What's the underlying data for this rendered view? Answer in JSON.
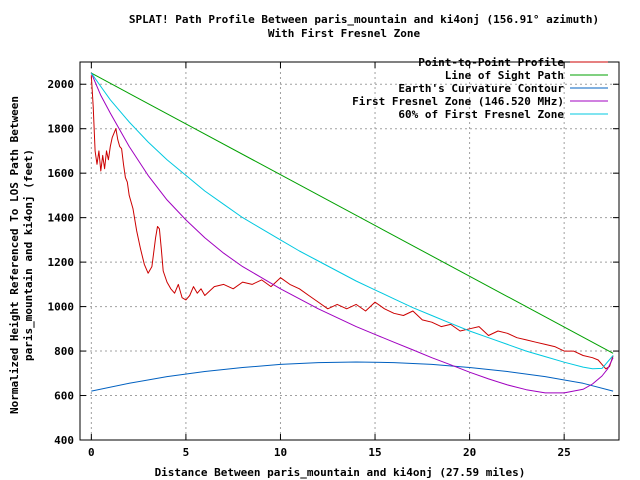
{
  "chart_data": {
    "type": "line",
    "title": "SPLAT! Path Profile Between paris_mountain and ki4onj (156.91° azimuth)",
    "subtitle": "With First Fresnel Zone",
    "xlabel": "Distance Between paris_mountain and ki4onj (27.59 miles)",
    "ylabel_line1": "Normalized Height Referenced To LOS Path Between",
    "ylabel_line2": "paris_mountain and ki4onj (feet)",
    "xlim": [
      -0.6,
      27.9
    ],
    "ylim": [
      400,
      2100
    ],
    "xticks": [
      0,
      5,
      10,
      15,
      20,
      25
    ],
    "yticks": [
      400,
      600,
      800,
      1000,
      1200,
      1400,
      1600,
      1800,
      2000
    ],
    "xtick_labels": [
      "0",
      "5",
      "10",
      "15",
      "20",
      "25"
    ],
    "ytick_labels": [
      "400",
      "600",
      "800",
      "1000",
      "1200",
      "1400",
      "1600",
      "1800",
      "2000"
    ],
    "grid": true,
    "legend_position": "top-right",
    "series": [
      {
        "name": "Point-to-Point Profile",
        "color": "#cc0000",
        "x": [
          0,
          0.1,
          0.2,
          0.3,
          0.4,
          0.5,
          0.6,
          0.7,
          0.8,
          0.9,
          1.0,
          1.1,
          1.2,
          1.3,
          1.4,
          1.5,
          1.6,
          1.7,
          1.8,
          1.9,
          2.0,
          2.2,
          2.4,
          2.6,
          2.8,
          3.0,
          3.2,
          3.4,
          3.5,
          3.6,
          3.7,
          3.8,
          4.0,
          4.2,
          4.4,
          4.6,
          4.8,
          5.0,
          5.2,
          5.4,
          5.6,
          5.8,
          6.0,
          6.5,
          7.0,
          7.5,
          8.0,
          8.5,
          9.0,
          9.5,
          10.0,
          10.5,
          11.0,
          11.5,
          12.0,
          12.5,
          13.0,
          13.5,
          14.0,
          14.5,
          15.0,
          15.5,
          16.0,
          16.5,
          17.0,
          17.5,
          18.0,
          18.5,
          19.0,
          19.5,
          20.0,
          20.5,
          21.0,
          21.5,
          22.0,
          22.5,
          23.0,
          23.5,
          24.0,
          24.5,
          25.0,
          25.5,
          26.0,
          26.5,
          26.8,
          27.0,
          27.2,
          27.4,
          27.59
        ],
        "values": [
          2040,
          1900,
          1700,
          1640,
          1700,
          1610,
          1680,
          1620,
          1700,
          1660,
          1720,
          1760,
          1780,
          1800,
          1750,
          1720,
          1710,
          1640,
          1580,
          1560,
          1500,
          1440,
          1340,
          1260,
          1190,
          1150,
          1180,
          1310,
          1360,
          1350,
          1260,
          1160,
          1110,
          1080,
          1060,
          1100,
          1040,
          1030,
          1050,
          1090,
          1060,
          1080,
          1050,
          1090,
          1100,
          1080,
          1110,
          1100,
          1120,
          1090,
          1130,
          1100,
          1080,
          1050,
          1020,
          990,
          1010,
          990,
          1010,
          980,
          1020,
          990,
          970,
          960,
          980,
          940,
          930,
          910,
          920,
          890,
          900,
          910,
          870,
          890,
          880,
          860,
          850,
          840,
          830,
          820,
          800,
          800,
          780,
          770,
          760,
          740,
          720,
          730,
          780
        ]
      },
      {
        "name": "Line of Sight Path",
        "color": "#00a000",
        "x": [
          0,
          27.59
        ],
        "values": [
          2050,
          790
        ]
      },
      {
        "name": "Earth's Curvature Contour",
        "color": "#0060c0",
        "x": [
          0,
          2,
          4,
          6,
          8,
          10,
          12,
          14,
          16,
          18,
          20,
          22,
          24,
          26,
          27.59
        ],
        "values": [
          620,
          655,
          685,
          708,
          726,
          740,
          748,
          751,
          748,
          740,
          726,
          708,
          685,
          655,
          620
        ]
      },
      {
        "name": "First Fresnel Zone (146.520 MHz)",
        "color": "#a000c0",
        "x": [
          0,
          0.5,
          1,
          2,
          3,
          4,
          5,
          6,
          7,
          8,
          9,
          10,
          11,
          12,
          13,
          14,
          15,
          16,
          17,
          18,
          19,
          20,
          21,
          22,
          23,
          24,
          25,
          26,
          26.5,
          27,
          27.3,
          27.59
        ],
        "values": [
          2050,
          1950,
          1870,
          1720,
          1590,
          1480,
          1390,
          1310,
          1240,
          1180,
          1130,
          1080,
          1035,
          990,
          950,
          910,
          875,
          840,
          805,
          770,
          738,
          705,
          675,
          648,
          626,
          612,
          612,
          628,
          652,
          688,
          720,
          770
        ]
      },
      {
        "name": "60% of First Fresnel Zone",
        "color": "#00c8e0",
        "x": [
          0,
          0.5,
          1,
          2,
          3,
          4,
          5,
          6,
          7,
          8,
          9,
          10,
          11,
          12,
          13,
          14,
          15,
          16,
          17,
          18,
          19,
          20,
          21,
          22,
          23,
          24,
          25,
          26,
          26.5,
          27,
          27.59
        ],
        "values": [
          2050,
          1990,
          1930,
          1830,
          1740,
          1660,
          1590,
          1520,
          1460,
          1400,
          1350,
          1300,
          1250,
          1205,
          1160,
          1115,
          1075,
          1035,
          995,
          960,
          925,
          890,
          860,
          830,
          800,
          775,
          750,
          728,
          720,
          722,
          780
        ]
      }
    ]
  }
}
